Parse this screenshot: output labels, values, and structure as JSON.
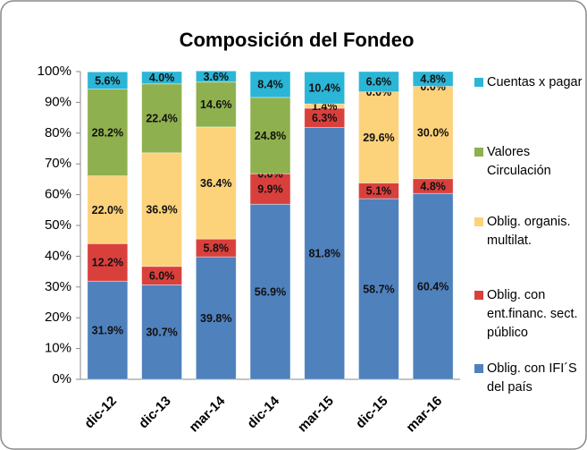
{
  "chart_data": {
    "type": "stacked_bar",
    "title": "Composición del Fondeo",
    "categories": [
      "dic-12",
      "dic-13",
      "mar-14",
      "dic-14",
      "mar-15",
      "dic-15",
      "mar-16"
    ],
    "series": [
      {
        "name": "Oblig. con IFI´S del país",
        "color": "#4f81bd",
        "values": [
          31.9,
          30.7,
          39.8,
          56.9,
          81.8,
          58.7,
          60.4
        ],
        "value_labels": [
          "31.9%",
          "30.7%",
          "39.8%",
          "56.9%",
          "81.8%",
          "58.7%",
          "60.4%"
        ]
      },
      {
        "name": "Oblig. con ent.financ. sect. público",
        "color": "#d9403c",
        "values": [
          12.2,
          6.0,
          5.8,
          9.9,
          6.3,
          5.1,
          4.8
        ],
        "value_labels": [
          "12.2%",
          "6.0%",
          "5.8%",
          "9.9%",
          "6.3%",
          "5.1%",
          "4.8%"
        ]
      },
      {
        "name": "Oblig. organis. multilat.",
        "color": "#fcd27a",
        "values": [
          22.0,
          36.9,
          36.4,
          0.0,
          1.4,
          29.6,
          30.0
        ],
        "value_labels": [
          "22.0%",
          "36.9%",
          "36.4%",
          "0.0%",
          "1.4%",
          "29.6%",
          "30.0%"
        ]
      },
      {
        "name": "Valores Circulación",
        "color": "#8fb04e",
        "values": [
          28.2,
          22.4,
          14.6,
          24.8,
          null,
          0.0,
          0.0
        ],
        "value_labels": [
          "28.2%",
          "22.4%",
          "14.6%",
          "24.8%",
          null,
          "0.0%",
          "0.0%"
        ]
      },
      {
        "name": "Cuentas x pagar",
        "color": "#2bb5d6",
        "values": [
          5.6,
          4.0,
          3.6,
          8.4,
          10.4,
          6.6,
          4.8
        ],
        "value_labels": [
          "5.6%",
          "4.0%",
          "3.6%",
          "8.4%",
          "10.4%",
          "6.6%",
          "4.8%"
        ]
      }
    ],
    "ylim": [
      0,
      100
    ],
    "yticks": [
      {
        "value": 0,
        "label": "0%"
      },
      {
        "value": 10,
        "label": "10%"
      },
      {
        "value": 20,
        "label": "20%"
      },
      {
        "value": 30,
        "label": "30%"
      },
      {
        "value": 40,
        "label": "40%"
      },
      {
        "value": 50,
        "label": "50%"
      },
      {
        "value": 60,
        "label": "60%"
      },
      {
        "value": 70,
        "label": "70%"
      },
      {
        "value": 80,
        "label": "80%"
      },
      {
        "value": 90,
        "label": "90%"
      },
      {
        "value": 100,
        "label": "100%"
      }
    ],
    "grid": false,
    "legend": "right"
  }
}
